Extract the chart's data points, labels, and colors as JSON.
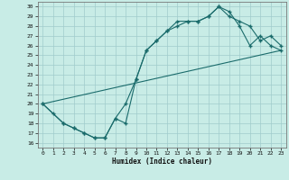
{
  "xlabel": "Humidex (Indice chaleur)",
  "xlim": [
    -0.5,
    23.5
  ],
  "ylim": [
    15.5,
    30.5
  ],
  "yticks": [
    16,
    17,
    18,
    19,
    20,
    21,
    22,
    23,
    24,
    25,
    26,
    27,
    28,
    29,
    30
  ],
  "xticks": [
    0,
    1,
    2,
    3,
    4,
    5,
    6,
    7,
    8,
    9,
    10,
    11,
    12,
    13,
    14,
    15,
    16,
    17,
    18,
    19,
    20,
    21,
    22,
    23
  ],
  "bg_color": "#c8ece6",
  "grid_color": "#a0cccc",
  "line_color": "#1a6b6b",
  "line1_x": [
    0,
    1,
    2,
    3,
    4,
    5,
    6,
    7,
    8,
    9,
    10,
    11,
    12,
    13,
    14,
    15,
    16,
    17,
    18,
    19,
    20,
    21,
    22,
    23
  ],
  "line1_y": [
    20,
    19,
    18,
    17.5,
    17,
    16.5,
    16.5,
    18.5,
    20,
    22.5,
    25.5,
    26.5,
    27.5,
    28.5,
    28.5,
    28.5,
    29,
    30,
    29.5,
    28,
    26,
    27,
    26,
    25.5
  ],
  "line2_x": [
    0,
    2,
    3,
    4,
    5,
    6,
    7,
    8,
    9,
    10,
    11,
    12,
    13,
    14,
    15,
    16,
    17,
    18,
    19,
    20,
    21,
    22,
    23
  ],
  "line2_y": [
    20,
    18,
    17.5,
    17,
    16.5,
    16.5,
    18.5,
    18,
    22.5,
    25.5,
    26.5,
    27.5,
    28,
    28.5,
    28.5,
    29,
    30,
    29,
    28.5,
    28,
    26.5,
    27,
    26
  ],
  "line3_x": [
    0,
    23
  ],
  "line3_y": [
    20,
    25.5
  ]
}
